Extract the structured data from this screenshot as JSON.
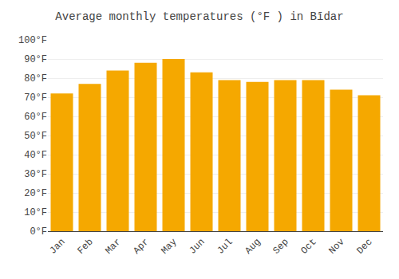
{
  "chart_data": {
    "type": "bar",
    "title": "Average monthly temperatures (°F ) in Bīdar",
    "categories": [
      "Jan",
      "Feb",
      "Mar",
      "Apr",
      "May",
      "Jun",
      "Jul",
      "Aug",
      "Sep",
      "Oct",
      "Nov",
      "Dec"
    ],
    "values": [
      72,
      77,
      84,
      88,
      90,
      83,
      79,
      78,
      79,
      79,
      74,
      71
    ],
    "color": "#F5A800",
    "ylim": [
      0,
      100
    ],
    "yticks": [
      {
        "value": 0,
        "label": "0°F"
      },
      {
        "value": 10,
        "label": "10°F"
      },
      {
        "value": 20,
        "label": "20°F"
      },
      {
        "value": 30,
        "label": "30°F"
      },
      {
        "value": 40,
        "label": "40°F"
      },
      {
        "value": 50,
        "label": "50°F"
      },
      {
        "value": 60,
        "label": "60°F"
      },
      {
        "value": 70,
        "label": "70°F"
      },
      {
        "value": 80,
        "label": "80°F"
      },
      {
        "value": 90,
        "label": "90°F"
      },
      {
        "value": 100,
        "label": "100°F"
      }
    ],
    "grid": true
  }
}
